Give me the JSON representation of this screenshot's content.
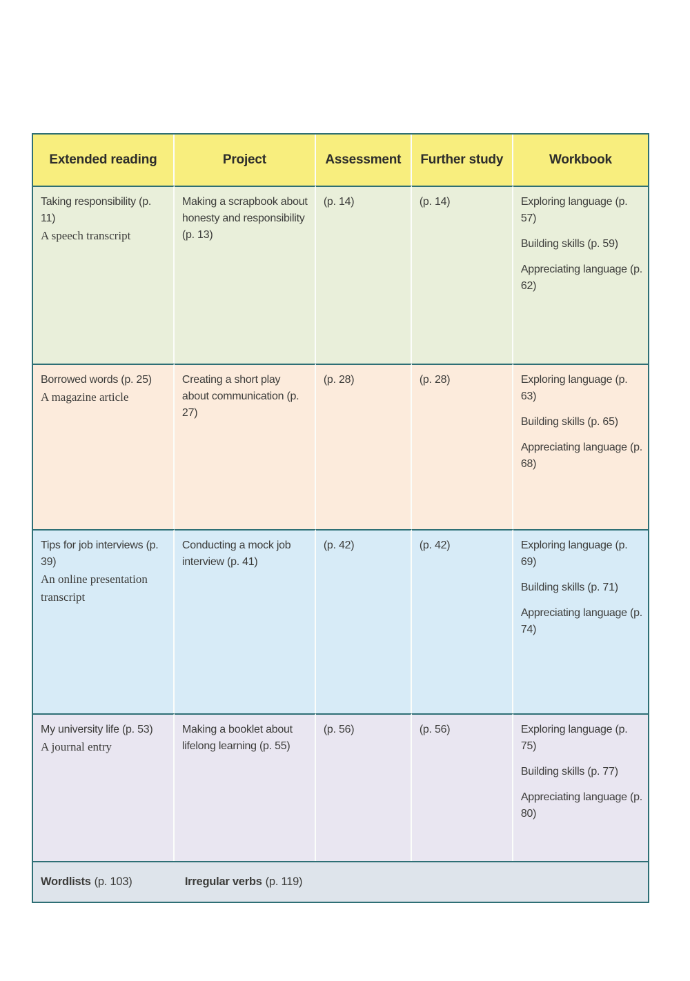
{
  "colors": {
    "border_teal": "#2e6f75",
    "separator_white": "#fbfdfa",
    "header_bg": "#f8ee7e",
    "row1_bg": "#e9efda",
    "row2_bg": "#fcebdc",
    "row3_bg": "#d7ebf7",
    "row4_bg": "#e9e6f1",
    "footer_bg": "#dee4eb",
    "header_text": "#2d2d2b",
    "body_text": "#3c3c3a"
  },
  "table": {
    "headers": [
      "Extended reading",
      "Project",
      "Assessment",
      "Further study",
      "Workbook"
    ],
    "rows": [
      {
        "reading_title": "Taking responsibility (p. 11)",
        "reading_genre": "A speech transcript",
        "project": "Making a scrapbook about honesty and responsibility (p. 13)",
        "assessment": "(p. 14)",
        "further_study": "(p. 14)",
        "workbook": [
          "Exploring language (p. 57)",
          "Building skills (p. 59)",
          "Appreciating language (p. 62)"
        ]
      },
      {
        "reading_title": "Borrowed words (p. 25)",
        "reading_genre": "A magazine article",
        "project": "Creating a short play about communication (p. 27)",
        "assessment": "(p. 28)",
        "further_study": "(p. 28)",
        "workbook": [
          "Exploring language (p. 63)",
          "Building skills (p. 65)",
          "Appreciating language (p. 68)"
        ]
      },
      {
        "reading_title": "Tips for job interviews (p. 39)",
        "reading_genre": "An online presentation transcript",
        "project": "Conducting a mock job interview (p. 41)",
        "assessment": "(p. 42)",
        "further_study": "(p. 42)",
        "workbook": [
          "Exploring language (p. 69)",
          "Building skills (p. 71)",
          "Appreciating language (p. 74)"
        ]
      },
      {
        "reading_title": "My university life (p. 53)",
        "reading_genre": "A journal entry",
        "project": "Making a booklet about lifelong learning (p. 55)",
        "assessment": "(p. 56)",
        "further_study": "(p. 56)",
        "workbook": [
          "Exploring language (p. 75)",
          "Building skills (p. 77)",
          "Appreciating language (p. 80)"
        ]
      }
    ],
    "footer": {
      "wordlists_label": "Wordlists",
      "wordlists_page": "(p. 103)",
      "irregular_verbs_label": "Irregular verbs",
      "irregular_verbs_page": "(p. 119)"
    }
  }
}
